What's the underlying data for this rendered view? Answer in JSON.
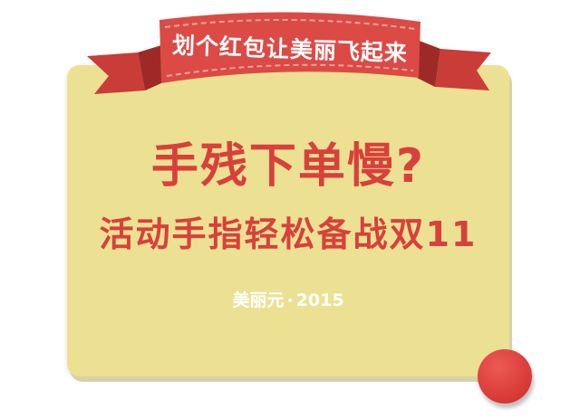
{
  "banner": {
    "text": "划个红包让美丽飞起来"
  },
  "headline": "手残下单慢?",
  "subheadline": "活动手指轻松备战双11",
  "footer": {
    "brand": "美丽元",
    "separator": "·",
    "year": "2015"
  },
  "colors": {
    "card_background": "#ece193",
    "accent_red": "#d9403b",
    "ribbon_red": "#dc4a45",
    "ribbon_dark": "#b3312d",
    "text_white": "#ffffff"
  },
  "icons": {
    "decor_circle": "red-circle-icon"
  }
}
